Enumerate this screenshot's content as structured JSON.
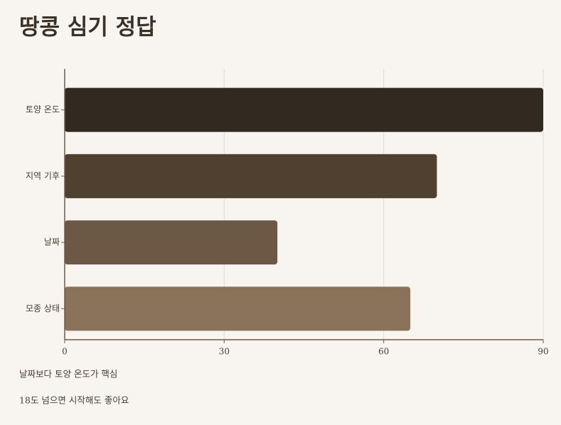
{
  "chart_data": {
    "type": "bar",
    "orientation": "horizontal",
    "title": "땅콩 심기 정답",
    "categories": [
      "토양 온도",
      "지역 기후",
      "날짜",
      "모종 상태"
    ],
    "values": [
      90,
      70,
      40,
      65
    ],
    "colors": [
      "#322920",
      "#4f4030",
      "#6d5846",
      "#8b725a"
    ],
    "xlim": [
      0,
      90
    ],
    "xticks": [
      0,
      30,
      60,
      90
    ],
    "grid": true,
    "annotations": [
      "날짜보다 토양 온도가 핵심",
      "18도 넘으면 시작해도 좋아요"
    ]
  }
}
